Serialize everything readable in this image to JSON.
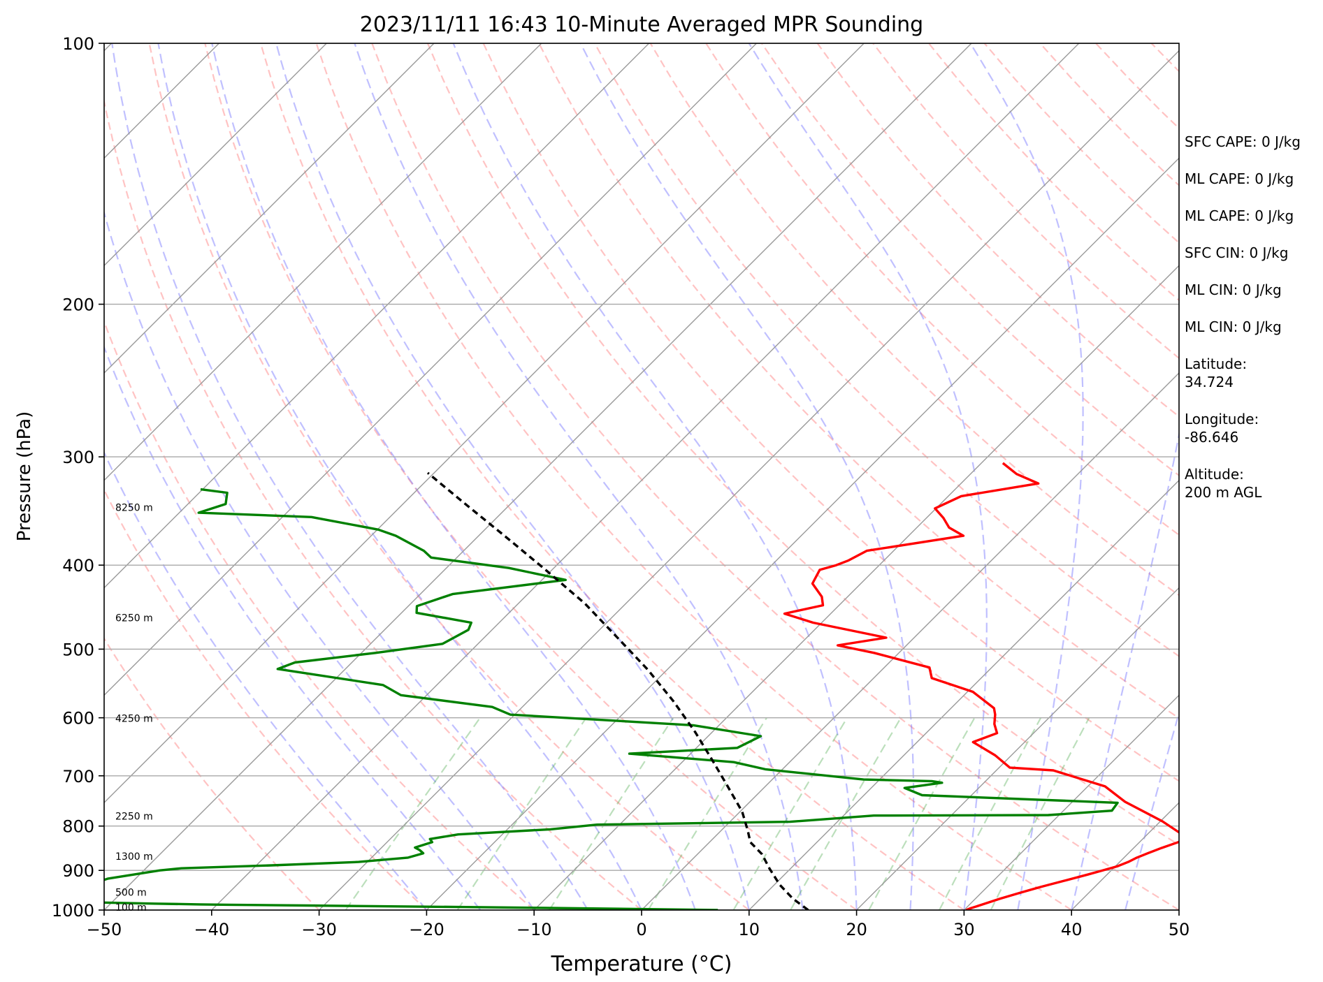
{
  "chart_data": {
    "type": "line",
    "title": "2023/11/11 16:43 10-Minute Averaged MPR Sounding",
    "xlabel": "Temperature (°C)",
    "ylabel": "Pressure (hPa)",
    "xlim": [
      -50,
      50
    ],
    "ylim": [
      1000,
      100
    ],
    "y_scale": "log",
    "x_ticks": [
      "−50",
      "−40",
      "−30",
      "−20",
      "−10",
      "0",
      "10",
      "20",
      "30",
      "40",
      "50"
    ],
    "y_ticks": [
      "100",
      "200",
      "300",
      "400",
      "500",
      "600",
      "700",
      "800",
      "900",
      "1000"
    ],
    "grid": true,
    "skew": true,
    "height_labels": [
      {
        "label": "8250 m",
        "p": 343
      },
      {
        "label": "6250 m",
        "p": 460
      },
      {
        "label": "4250 m",
        "p": 601
      },
      {
        "label": "2250 m",
        "p": 779
      },
      {
        "label": "1300 m",
        "p": 867
      },
      {
        "label": "500 m",
        "p": 954
      },
      {
        "label": "100 m",
        "p": 993
      }
    ],
    "series": [
      {
        "role": "temperature",
        "color": "#ff0000",
        "points": [
          [
            30.2,
            1000
          ],
          [
            30.4,
            996
          ],
          [
            31.2,
            985
          ],
          [
            32.3,
            970
          ],
          [
            33.6,
            955
          ],
          [
            35.0,
            940
          ],
          [
            36.6,
            925
          ],
          [
            38.2,
            910
          ],
          [
            39.2,
            900
          ],
          [
            40.2,
            890
          ],
          [
            40.8,
            880
          ],
          [
            41.2,
            870
          ],
          [
            41.8,
            860
          ],
          [
            42.6,
            848
          ],
          [
            43.6,
            835
          ],
          [
            44.0,
            825
          ],
          [
            40.2,
            790
          ],
          [
            34.9,
            750
          ],
          [
            31.6,
            720
          ],
          [
            25.3,
            690
          ],
          [
            21.0,
            685
          ],
          [
            18.5,
            663
          ],
          [
            15.2,
            640
          ],
          [
            16.6,
            625
          ],
          [
            15.5,
            610
          ],
          [
            14.7,
            595
          ],
          [
            14.0,
            585
          ],
          [
            10.5,
            560
          ],
          [
            5.4,
            540
          ],
          [
            4.2,
            525
          ],
          [
            -2.3,
            505
          ],
          [
            -6.4,
            495
          ],
          [
            -2.6,
            485
          ],
          [
            -10.8,
            466
          ],
          [
            -14.3,
            455
          ],
          [
            -11.5,
            445
          ],
          [
            -12.4,
            435
          ],
          [
            -14.5,
            420
          ],
          [
            -15.1,
            405
          ],
          [
            -14.0,
            400
          ],
          [
            -13.3,
            395
          ],
          [
            -12.5,
            385
          ],
          [
            -4.9,
            370
          ],
          [
            -7.0,
            362
          ],
          [
            -8.4,
            353
          ],
          [
            -10.1,
            344
          ],
          [
            -8.8,
            333
          ],
          [
            -2.8,
            322
          ],
          [
            -5.7,
            314
          ],
          [
            -8.0,
            305
          ]
        ]
      },
      {
        "role": "dewpoint",
        "color": "#008000",
        "points": [
          [
            7.1,
            1000
          ],
          [
            -4.0,
            996
          ],
          [
            -16.6,
            992
          ],
          [
            -31.4,
            988
          ],
          [
            -38.9,
            986
          ],
          [
            -41.6,
            985
          ],
          [
            -45.9,
            983
          ],
          [
            -51.3,
            980
          ],
          [
            -54.0,
            978
          ],
          [
            -56.8,
            975
          ],
          [
            -52.6,
            920
          ],
          [
            -48.5,
            900
          ],
          [
            -46.7,
            895
          ],
          [
            -38.6,
            888
          ],
          [
            -30.8,
            880
          ],
          [
            -26.6,
            870
          ],
          [
            -25.6,
            860
          ],
          [
            -26.2,
            853
          ],
          [
            -26.9,
            847
          ],
          [
            -25.8,
            835
          ],
          [
            -26.3,
            828
          ],
          [
            -24.1,
            818
          ],
          [
            -16.0,
            807
          ],
          [
            -12.1,
            797
          ],
          [
            5.6,
            791
          ],
          [
            12.8,
            778
          ],
          [
            29.0,
            777
          ],
          [
            34.5,
            768
          ],
          [
            34.3,
            752
          ],
          [
            15.4,
            737
          ],
          [
            13.1,
            723
          ],
          [
            16.1,
            713
          ],
          [
            15.0,
            710
          ],
          [
            8.5,
            707
          ],
          [
            -1.6,
            688
          ],
          [
            -5.2,
            675
          ],
          [
            -15.7,
            660
          ],
          [
            -6.2,
            650
          ],
          [
            -5.1,
            630
          ],
          [
            -12.4,
            612
          ],
          [
            -30.4,
            595
          ],
          [
            -32.8,
            583
          ],
          [
            -42.4,
            565
          ],
          [
            -45.0,
            550
          ],
          [
            -56.3,
            527
          ],
          [
            -55.3,
            518
          ],
          [
            -48.7,
            505
          ],
          [
            -43.3,
            493
          ],
          [
            -42.2,
            475
          ],
          [
            -42.6,
            466
          ],
          [
            -48.6,
            454
          ],
          [
            -49.2,
            446
          ],
          [
            -47.0,
            432
          ],
          [
            -37.8,
            416
          ],
          [
            -44.2,
            403
          ],
          [
            -52.4,
            392
          ],
          [
            -53.7,
            385
          ],
          [
            -57.7,
            370
          ],
          [
            -59.9,
            364
          ],
          [
            -67.3,
            352
          ],
          [
            -78.2,
            348
          ],
          [
            -76.5,
            340
          ],
          [
            -77.4,
            330
          ],
          [
            -80.2,
            327
          ]
        ]
      },
      {
        "role": "parcel",
        "color": "#000000",
        "dashed": true,
        "points": [
          [
            15.5,
            1000
          ],
          [
            13.0,
            970
          ],
          [
            10.5,
            935
          ],
          [
            8.0,
            895
          ],
          [
            6.0,
            862
          ],
          [
            3.8,
            835
          ],
          [
            2.5,
            810
          ],
          [
            0.2,
            770
          ],
          [
            -3.5,
            720
          ],
          [
            -7.5,
            670
          ],
          [
            -11.6,
            623
          ],
          [
            -16.5,
            574
          ],
          [
            -21.8,
            528
          ],
          [
            -27.6,
            485
          ],
          [
            -33.8,
            443
          ],
          [
            -40.6,
            405
          ],
          [
            -47.6,
            370
          ],
          [
            -54.2,
            340
          ],
          [
            -60.6,
            313
          ]
        ]
      }
    ],
    "stats": [
      "SFC CAPE: 0 J/kg",
      "ML CAPE: 0 J/kg",
      "ML CAPE: 0 J/kg",
      "SFC CIN: 0 J/kg",
      "ML CIN: 0 J/kg",
      "ML CIN: 0 J/kg"
    ],
    "location": {
      "latitude": "Latitude:\n34.724",
      "longitude": "Longitude:\n-86.646",
      "altitude": "Altitude:\n200 m AGL"
    }
  }
}
